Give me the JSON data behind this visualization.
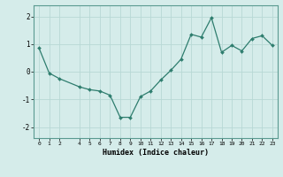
{
  "x": [
    0,
    1,
    2,
    4,
    5,
    6,
    7,
    8,
    9,
    10,
    11,
    12,
    13,
    14,
    15,
    16,
    17,
    18,
    19,
    20,
    21,
    22,
    23
  ],
  "y": [
    0.85,
    -0.05,
    -0.25,
    -0.55,
    -0.65,
    -0.7,
    -0.85,
    -1.65,
    -1.65,
    -0.9,
    -0.7,
    -0.3,
    0.05,
    0.45,
    1.35,
    1.25,
    1.95,
    0.7,
    0.95,
    0.75,
    1.2,
    1.3,
    0.95
  ],
  "xlabel": "Humidex (Indice chaleur)",
  "xticks": [
    0,
    1,
    2,
    4,
    5,
    6,
    7,
    8,
    9,
    10,
    11,
    12,
    13,
    14,
    15,
    16,
    17,
    18,
    19,
    20,
    21,
    22,
    23
  ],
  "yticks": [
    -2,
    -1,
    0,
    1,
    2
  ],
  "ylim": [
    -2.4,
    2.4
  ],
  "xlim": [
    -0.5,
    23.5
  ],
  "bg_color": "#d5ecea",
  "line_color": "#2e7d6e",
  "marker_color": "#2e7d6e",
  "grid_color": "#b8d8d5",
  "spine_color": "#5a9a90"
}
